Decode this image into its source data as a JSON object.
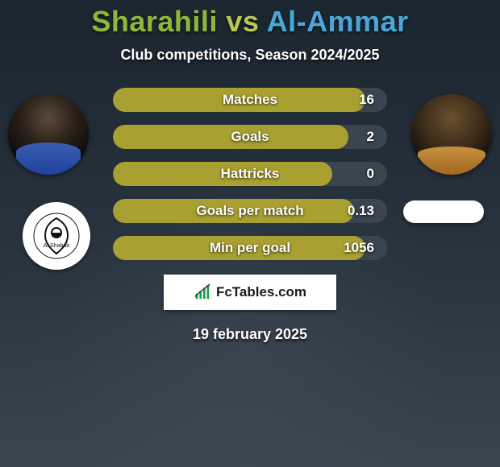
{
  "title": {
    "player1": "Sharahili",
    "vs": "vs",
    "player2": "Al-Ammar",
    "player1_color": "#8fb83a",
    "vs_color": "#b8c850",
    "player2_color": "#4aa8d8"
  },
  "subtitle": "Club competitions, Season 2024/2025",
  "bar_style": {
    "bg_color": "#3a4550",
    "fill_color": "#a8a030",
    "text_color": "#ffffff"
  },
  "stats": [
    {
      "label": "Matches",
      "value": "16",
      "fill_pct": 92
    },
    {
      "label": "Goals",
      "value": "2",
      "fill_pct": 86
    },
    {
      "label": "Hattricks",
      "value": "0",
      "fill_pct": 80
    },
    {
      "label": "Goals per match",
      "value": "0.13",
      "fill_pct": 88
    },
    {
      "label": "Min per goal",
      "value": "1056",
      "fill_pct": 92
    }
  ],
  "brand": "FcTables.com",
  "date": "19 february 2025",
  "club_left_label": "Al Shabab"
}
